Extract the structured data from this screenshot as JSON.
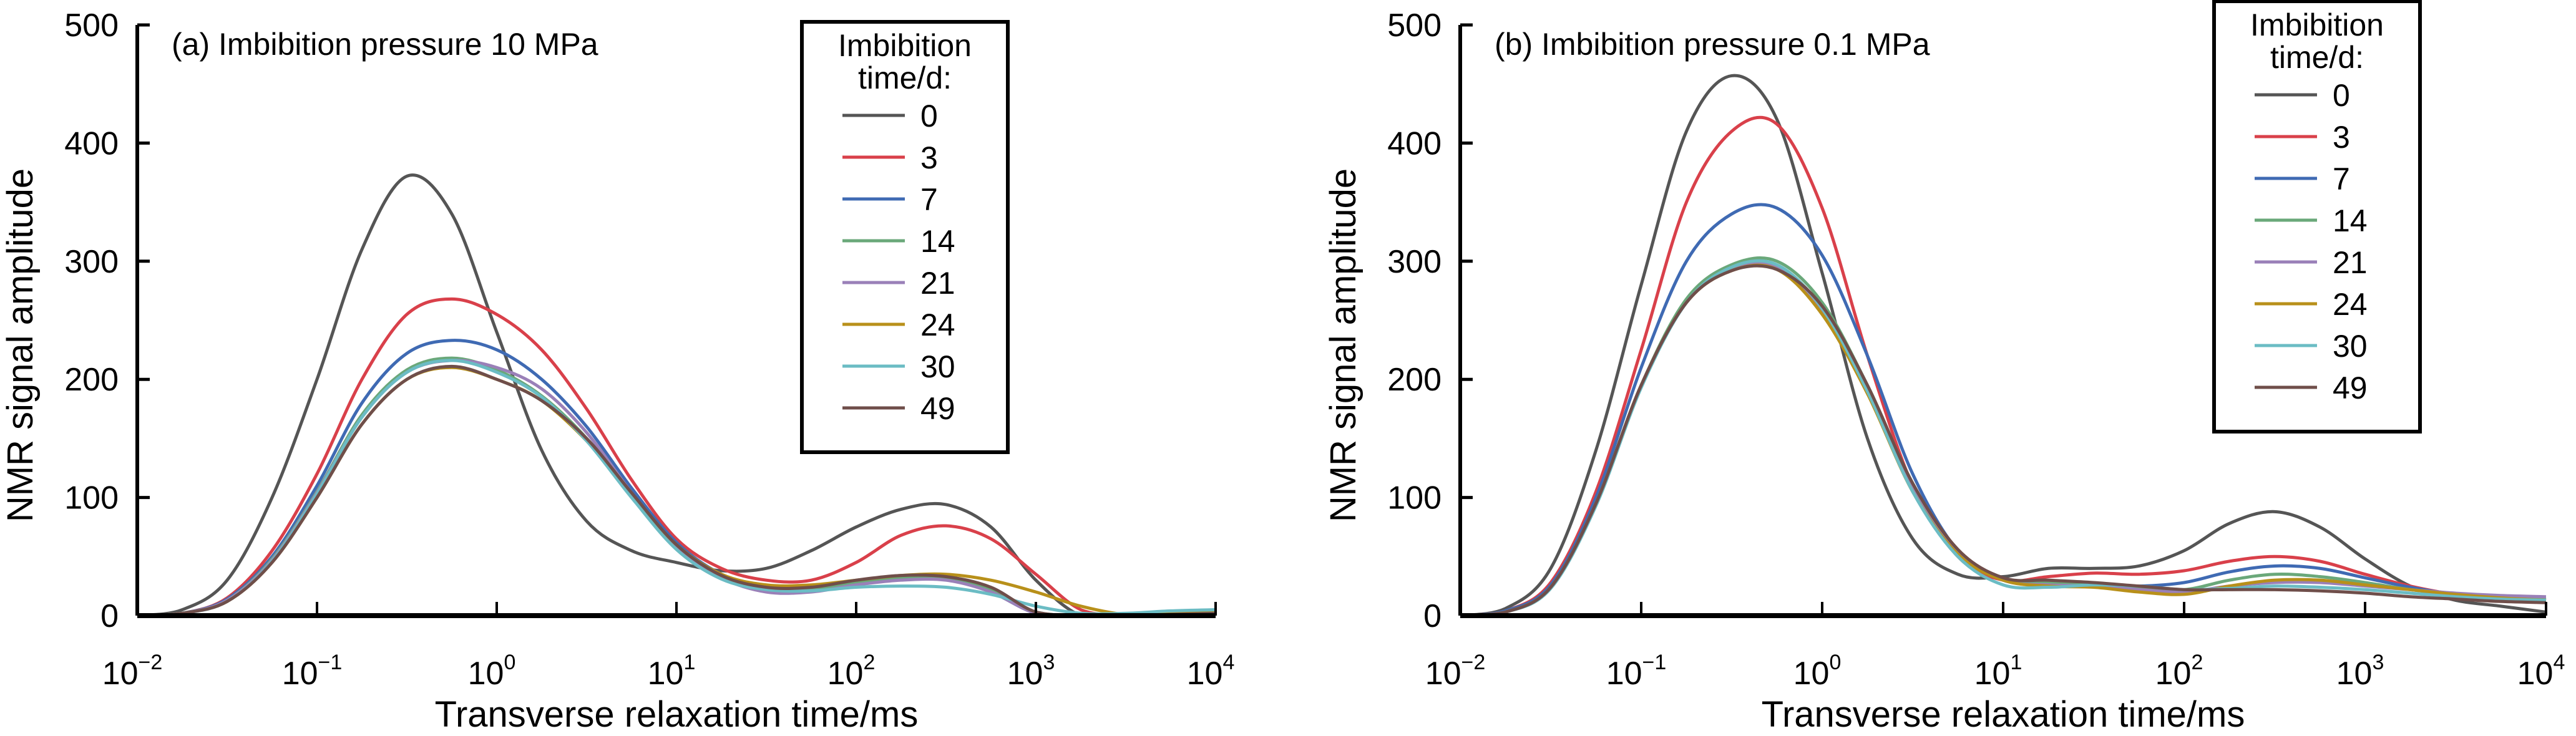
{
  "chart_data": [
    {
      "type": "line",
      "title": "(a) Imbibition pressure 10 MPa",
      "xlabel": "Transverse relaxation time/ms",
      "ylabel": "NMR signal amplitude",
      "xscale": "log",
      "xlim": [
        0.01,
        10000
      ],
      "ylim": [
        0,
        500
      ],
      "yticks": [
        "0",
        "100",
        "200",
        "300",
        "400",
        "500"
      ],
      "xticks": [
        {
          "base": "10",
          "exp": "−2"
        },
        {
          "base": "10",
          "exp": "−1"
        },
        {
          "base": "10",
          "exp": "0"
        },
        {
          "base": "10",
          "exp": "1"
        },
        {
          "base": "10",
          "exp": "2"
        },
        {
          "base": "10",
          "exp": "3"
        },
        {
          "base": "10",
          "exp": "4"
        }
      ],
      "legend_title": [
        "Imbibition",
        "time/d:"
      ],
      "legend_position": "top-right",
      "log10_x": [
        -2,
        -1.75,
        -1.5,
        -1.25,
        -1,
        -0.75,
        -0.5,
        -0.25,
        0,
        0.25,
        0.5,
        0.75,
        1,
        1.25,
        1.5,
        1.75,
        2,
        2.25,
        2.5,
        2.75,
        3,
        3.25,
        3.5,
        3.75,
        4
      ],
      "series": [
        {
          "name": "0",
          "color": "#555555",
          "values": [
            0,
            5,
            30,
            100,
            200,
            310,
            372,
            340,
            240,
            140,
            80,
            55,
            45,
            38,
            40,
            55,
            75,
            90,
            94,
            75,
            30,
            0,
            0,
            0,
            0
          ]
        },
        {
          "name": "3",
          "color": "#d9404a",
          "values": [
            0,
            2,
            15,
            55,
            120,
            200,
            255,
            268,
            255,
            225,
            175,
            115,
            65,
            40,
            30,
            30,
            45,
            68,
            76,
            65,
            35,
            5,
            0,
            0,
            0
          ]
        },
        {
          "name": "7",
          "color": "#3f6ab3",
          "values": [
            0,
            2,
            14,
            50,
            110,
            180,
            222,
            233,
            225,
            200,
            160,
            108,
            62,
            35,
            24,
            22,
            28,
            32,
            31,
            20,
            2,
            0,
            0,
            2,
            3
          ]
        },
        {
          "name": "14",
          "color": "#6aa87a",
          "values": [
            0,
            2,
            13,
            48,
            105,
            170,
            208,
            218,
            208,
            186,
            150,
            102,
            58,
            32,
            22,
            22,
            28,
            32,
            32,
            22,
            3,
            0,
            0,
            1,
            2
          ]
        },
        {
          "name": "21",
          "color": "#9a80b8",
          "values": [
            0,
            2,
            13,
            47,
            104,
            168,
            206,
            216,
            210,
            192,
            155,
            104,
            58,
            32,
            20,
            20,
            26,
            30,
            30,
            20,
            2,
            0,
            0,
            1,
            2
          ]
        },
        {
          "name": "24",
          "color": "#b8901a",
          "values": [
            0,
            2,
            12,
            45,
            100,
            162,
            200,
            210,
            200,
            182,
            148,
            103,
            60,
            35,
            26,
            26,
            30,
            34,
            35,
            30,
            20,
            8,
            1,
            2,
            3
          ]
        },
        {
          "name": "30",
          "color": "#6bbcc4",
          "values": [
            0,
            2,
            12,
            46,
            103,
            168,
            206,
            216,
            206,
            185,
            148,
            100,
            56,
            31,
            22,
            21,
            24,
            25,
            24,
            18,
            8,
            2,
            2,
            4,
            5
          ]
        },
        {
          "name": "49",
          "color": "#6f4e4a",
          "values": [
            0,
            2,
            12,
            45,
            100,
            162,
            200,
            211,
            200,
            182,
            150,
            104,
            60,
            34,
            24,
            24,
            30,
            34,
            33,
            24,
            3,
            0,
            0,
            1,
            2
          ]
        }
      ]
    },
    {
      "type": "line",
      "title": "(b) Imbibition pressure 0.1 MPa",
      "xlabel": "Transverse relaxation time/ms",
      "ylabel": "NMR signal amplitude",
      "xscale": "log",
      "xlim": [
        0.01,
        10000
      ],
      "ylim": [
        0,
        500
      ],
      "yticks": [
        "0",
        "100",
        "200",
        "300",
        "400",
        "500"
      ],
      "xticks": [
        {
          "base": "10",
          "exp": "−2"
        },
        {
          "base": "10",
          "exp": "−1"
        },
        {
          "base": "10",
          "exp": "0"
        },
        {
          "base": "10",
          "exp": "1"
        },
        {
          "base": "10",
          "exp": "2"
        },
        {
          "base": "10",
          "exp": "3"
        },
        {
          "base": "10",
          "exp": "4"
        }
      ],
      "legend_title": [
        "Imbibition",
        "time/d:"
      ],
      "legend_position": "top-right",
      "log10_x": [
        -2,
        -1.75,
        -1.5,
        -1.25,
        -1,
        -0.75,
        -0.5,
        -0.25,
        0,
        0.25,
        0.5,
        0.75,
        1,
        1.25,
        1.5,
        1.75,
        2,
        2.25,
        2.5,
        2.75,
        3,
        3.25,
        3.5,
        3.75,
        4
      ],
      "series": [
        {
          "name": "0",
          "color": "#555555",
          "values": [
            0,
            6,
            40,
            140,
            280,
            410,
            457,
            420,
            290,
            150,
            65,
            35,
            33,
            40,
            40,
            42,
            55,
            78,
            88,
            75,
            48,
            25,
            13,
            8,
            3
          ]
        },
        {
          "name": "3",
          "color": "#d9404a",
          "values": [
            0,
            4,
            28,
            105,
            225,
            350,
            410,
            416,
            345,
            220,
            110,
            50,
            30,
            33,
            36,
            35,
            38,
            46,
            50,
            46,
            35,
            25,
            18,
            15,
            13
          ]
        },
        {
          "name": "7",
          "color": "#3f6ab3",
          "values": [
            0,
            4,
            26,
            100,
            210,
            300,
            340,
            345,
            305,
            220,
            120,
            55,
            32,
            28,
            26,
            25,
            28,
            37,
            42,
            40,
            32,
            24,
            18,
            15,
            13
          ]
        },
        {
          "name": "14",
          "color": "#6aa87a",
          "values": [
            0,
            3,
            24,
            95,
            195,
            268,
            297,
            300,
            265,
            195,
            112,
            55,
            30,
            28,
            27,
            24,
            22,
            30,
            35,
            33,
            28,
            22,
            18,
            16,
            14
          ]
        },
        {
          "name": "21",
          "color": "#9a80b8",
          "values": [
            0,
            3,
            24,
            95,
            195,
            265,
            293,
            295,
            258,
            190,
            108,
            54,
            30,
            26,
            25,
            22,
            20,
            25,
            28,
            28,
            25,
            22,
            19,
            17,
            16
          ]
        },
        {
          "name": "24",
          "color": "#b8901a",
          "values": [
            0,
            3,
            24,
            95,
            195,
            265,
            292,
            293,
            255,
            188,
            105,
            52,
            30,
            25,
            24,
            20,
            18,
            25,
            30,
            30,
            26,
            22,
            18,
            15,
            13
          ]
        },
        {
          "name": "30",
          "color": "#6bbcc4",
          "values": [
            0,
            3,
            23,
            93,
            193,
            265,
            295,
            297,
            260,
            190,
            105,
            50,
            26,
            24,
            26,
            25,
            22,
            23,
            25,
            24,
            22,
            19,
            16,
            14,
            13
          ]
        },
        {
          "name": "49",
          "color": "#6f4e4a",
          "values": [
            0,
            3,
            24,
            95,
            195,
            265,
            292,
            293,
            262,
            195,
            112,
            56,
            32,
            30,
            28,
            25,
            22,
            22,
            22,
            21,
            19,
            16,
            14,
            12,
            11
          ]
        }
      ]
    }
  ]
}
